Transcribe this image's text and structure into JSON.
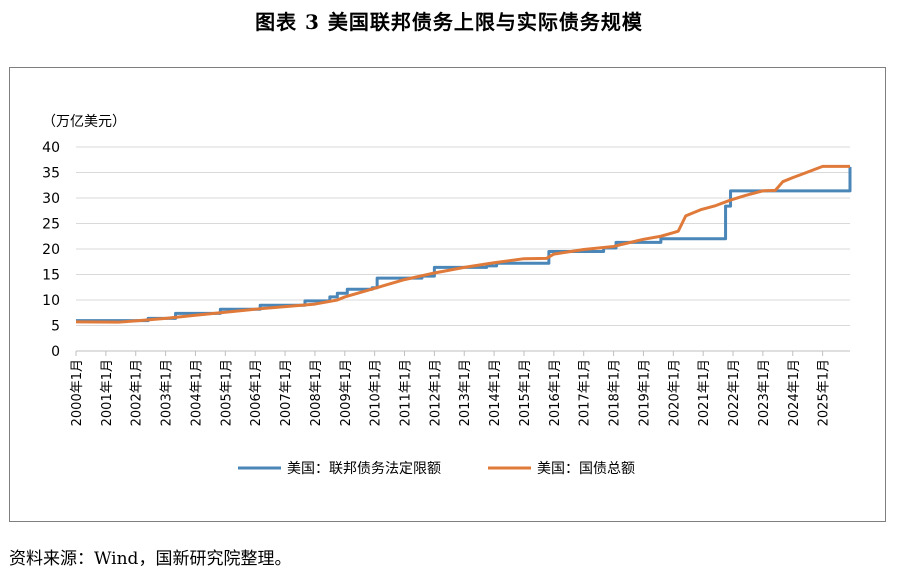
{
  "figure_title": "图表 3  美国联邦债务上限与实际债务规模",
  "source_note": "资料来源：Wind，国新研究院整理。",
  "colors": {
    "debt_limit": "#4a86b8",
    "actual_debt": "#e07a3a",
    "grid": "#d9d9d9",
    "axis": "#bfbfbf"
  },
  "chart_data": {
    "type": "line",
    "unit_label": "（万亿美元）",
    "xlabel": "",
    "ylabel": "",
    "ylim": [
      0,
      40
    ],
    "yticks": [
      0,
      5,
      10,
      15,
      20,
      25,
      30,
      35,
      40
    ],
    "xlim": [
      "2000-01",
      "2025-12"
    ],
    "xticks": [
      "2000年1月",
      "2001年1月",
      "2002年1月",
      "2003年1月",
      "2004年1月",
      "2005年1月",
      "2006年1月",
      "2007年1月",
      "2008年1月",
      "2009年1月",
      "2010年1月",
      "2011年1月",
      "2012年1月",
      "2013年1月",
      "2014年1月",
      "2015年1月",
      "2016年1月",
      "2017年1月",
      "2018年1月",
      "2019年1月",
      "2020年1月",
      "2021年1月",
      "2022年1月",
      "2023年1月",
      "2024年1月",
      "2025年1月"
    ],
    "grid": "horizontal",
    "legend_position": "bottom",
    "series": [
      {
        "name": "美国：联邦债务法定限额",
        "step": true,
        "x": [
          "2000-01",
          "2002-06",
          "2003-05",
          "2004-11",
          "2006-03",
          "2007-09",
          "2008-07",
          "2008-10",
          "2009-02",
          "2009-12",
          "2010-02",
          "2011-08",
          "2012-01",
          "2013-10",
          "2014-02",
          "2015-11",
          "2017-09",
          "2018-02",
          "2019-08",
          "2021-10",
          "2021-12",
          "2025-12"
        ],
        "y": [
          5.95,
          6.4,
          7.38,
          8.18,
          8.97,
          9.82,
          10.62,
          11.32,
          12.1,
          12.39,
          14.29,
          14.69,
          16.39,
          16.7,
          17.2,
          19.5,
          20.2,
          21.3,
          22.0,
          28.4,
          31.4,
          36.1
        ]
      },
      {
        "name": "美国：国债总额",
        "step": false,
        "x": [
          "2000-01",
          "2001-06",
          "2002-01",
          "2003-01",
          "2004-01",
          "2005-01",
          "2006-01",
          "2007-01",
          "2008-01",
          "2008-10",
          "2009-01",
          "2010-01",
          "2011-01",
          "2012-01",
          "2013-01",
          "2014-01",
          "2015-01",
          "2015-10",
          "2016-01",
          "2017-01",
          "2018-01",
          "2019-01",
          "2019-08",
          "2020-01",
          "2020-03",
          "2020-06",
          "2020-12",
          "2021-06",
          "2021-12",
          "2022-06",
          "2023-01",
          "2023-06",
          "2023-09",
          "2024-01",
          "2024-06",
          "2025-01",
          "2025-03",
          "2025-12"
        ],
        "y": [
          5.7,
          5.65,
          5.9,
          6.4,
          7.0,
          7.6,
          8.2,
          8.7,
          9.2,
          10.0,
          10.6,
          12.3,
          14.0,
          15.3,
          16.4,
          17.3,
          18.1,
          18.15,
          19.0,
          19.9,
          20.5,
          21.9,
          22.5,
          23.2,
          23.5,
          26.5,
          27.7,
          28.5,
          29.6,
          30.5,
          31.4,
          31.5,
          33.2,
          34.0,
          34.9,
          36.2,
          36.2,
          36.2
        ]
      }
    ]
  }
}
